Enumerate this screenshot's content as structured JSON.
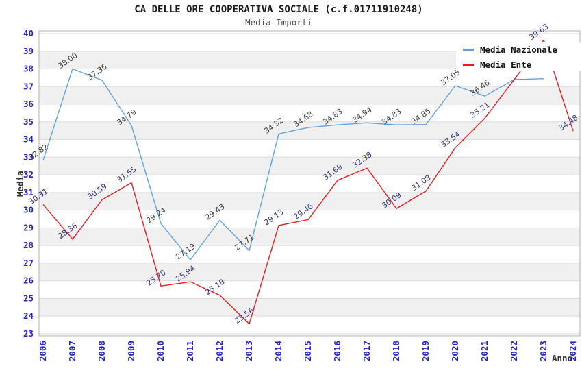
{
  "header": {
    "title": "CA DELLE ORE COOPERATIVA SOCIALE (c.f.01711910248)",
    "subtitle": "Media Importi"
  },
  "legend": {
    "items": [
      {
        "label": "Media Nazionale",
        "color": "#63a2e0"
      },
      {
        "label": "Media Ente",
        "color": "#e81c1c"
      }
    ]
  },
  "chart_data": {
    "type": "line",
    "title": "CA DELLE ORE COOPERATIVA SOCIALE (c.f.01711910248)",
    "subtitle": "Media Importi",
    "xlabel": "Anno",
    "ylabel": "Media",
    "categories": [
      2006,
      2007,
      2008,
      2009,
      2010,
      2011,
      2012,
      2013,
      2014,
      2015,
      2016,
      2017,
      2018,
      2019,
      2020,
      2021,
      2022,
      2023,
      2024
    ],
    "ylim": [
      23,
      40
    ],
    "y_ticks": [
      23,
      24,
      25,
      26,
      27,
      28,
      29,
      30,
      31,
      32,
      33,
      34,
      35,
      36,
      37,
      38,
      39,
      40
    ],
    "grid": true,
    "legend_position": "top-right",
    "colors": {
      "band_gray": "#f0f0f0",
      "grid_line": "#dcdcdc",
      "plot_border": "#b0b0b0",
      "axis_tick_text": "#2424c8",
      "axis_title_text": "#333333"
    },
    "series": [
      {
        "name": "Media Nazionale",
        "color": "#63a2e0",
        "label_color": "#3c3c3c",
        "values": [
          32.82,
          38.0,
          37.36,
          34.79,
          29.24,
          27.19,
          29.43,
          27.71,
          34.32,
          34.68,
          34.83,
          34.94,
          34.83,
          34.85,
          37.05,
          36.46,
          37.4,
          37.45,
          null
        ],
        "labels": [
          "32.82",
          "38.00",
          "37.36",
          "34.79",
          "29.24",
          "27.19",
          "29.43",
          "27.71",
          "34.32",
          "34.68",
          "34.83",
          "34.94",
          "34.83",
          "34.85",
          "37.05",
          "36.46",
          "",
          "",
          ""
        ]
      },
      {
        "name": "Media Ente",
        "color": "#e81c1c",
        "label_color": "#32327d",
        "values": [
          30.31,
          28.36,
          30.59,
          31.55,
          25.7,
          25.94,
          25.18,
          23.56,
          29.13,
          29.46,
          31.69,
          32.38,
          30.09,
          31.08,
          33.54,
          35.21,
          37.4,
          39.63,
          34.48
        ],
        "labels": [
          "30.31",
          "28.36",
          "30.59",
          "31.55",
          "25.70",
          "25.94",
          "25.18",
          "23.56",
          "29.13",
          "29.46",
          "31.69",
          "32.38",
          "30.09",
          "31.08",
          "33.54",
          "35.21",
          "",
          "39.63",
          "34.48"
        ]
      }
    ]
  }
}
